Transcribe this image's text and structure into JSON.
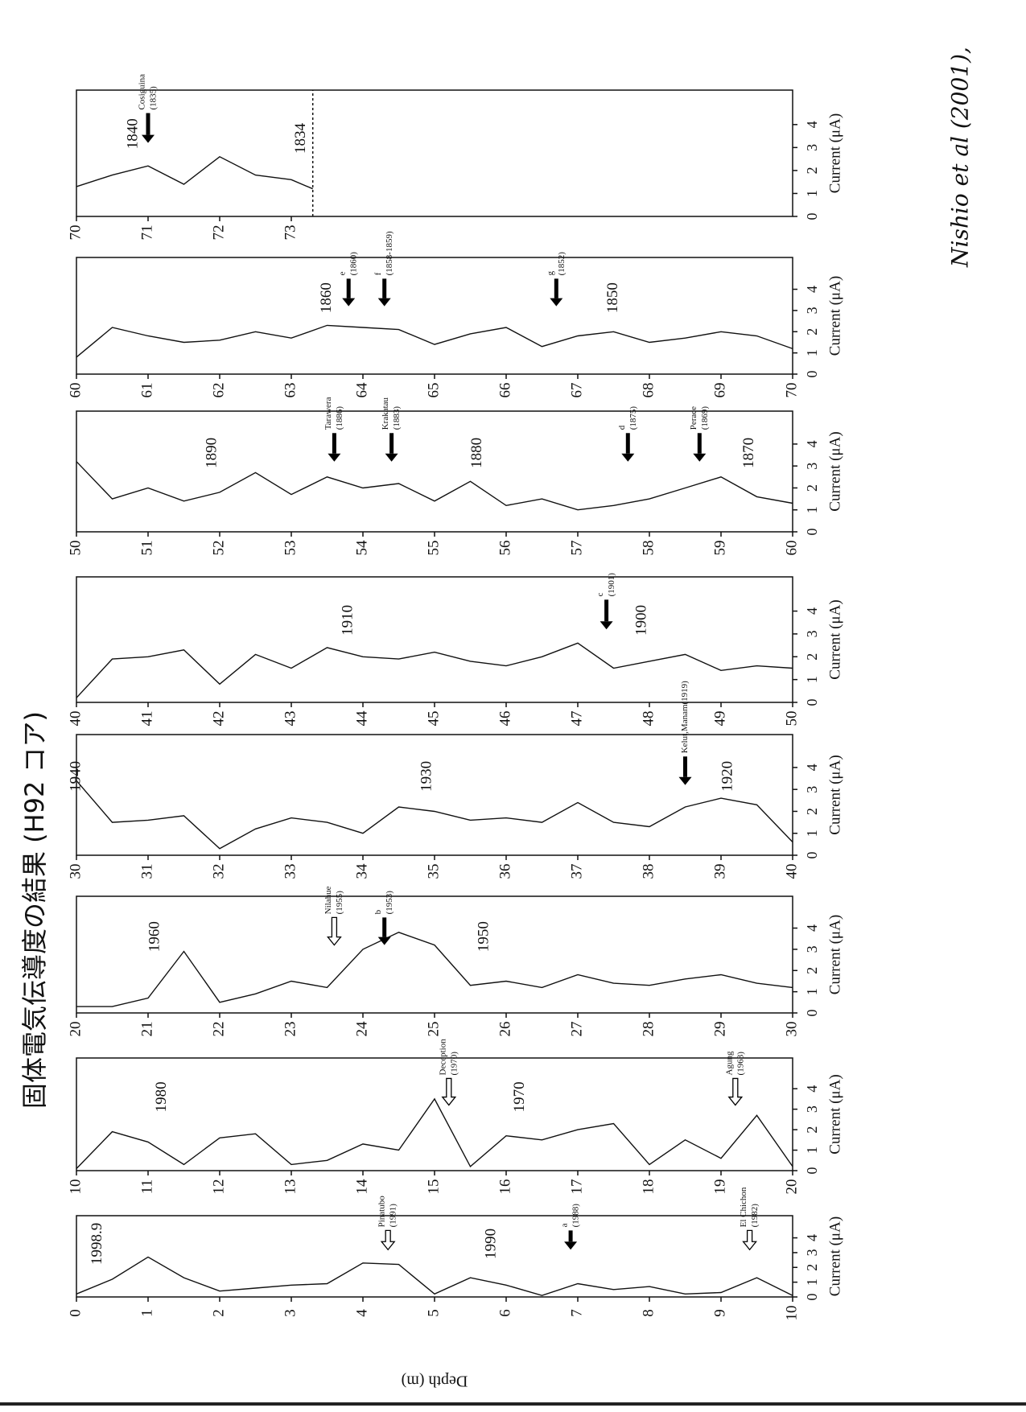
{
  "header": {
    "title": "固体電気伝導度の結果 (H92 コア)",
    "note": "Nishio et al (2001),"
  },
  "chart_data": [
    {
      "type": "line",
      "color": "#111111",
      "ylabel": "Depth (m)",
      "xlabel": "Current (μA)",
      "xlim": [
        0,
        5.5
      ],
      "xticks": [
        0,
        1,
        2,
        3,
        4
      ],
      "ylim": [
        0,
        10
      ],
      "yticks": [
        0,
        1,
        2,
        3,
        4,
        5,
        6,
        7,
        8,
        9,
        10
      ],
      "depth": [
        0,
        0.5,
        1,
        1.5,
        2,
        2.5,
        3,
        3.5,
        4,
        4.5,
        5,
        5.5,
        6,
        6.5,
        7,
        7.5,
        8,
        8.5,
        9,
        9.5,
        10
      ],
      "values": [
        0.2,
        1.2,
        2.7,
        1.3,
        0.4,
        0.6,
        0.8,
        0.9,
        2.3,
        2.2,
        0.2,
        1.3,
        0.8,
        0.1,
        0.9,
        0.5,
        0.7,
        0.2,
        0.3,
        1.3,
        0.1
      ],
      "year_labels": [
        {
          "depth": 0.3,
          "label": "1998.9"
        },
        {
          "depth": 5.8,
          "label": "1990"
        }
      ],
      "events": [
        {
          "depth": 4.35,
          "name": "Pinatubo",
          "year": "(1991)",
          "arrow": "open"
        },
        {
          "depth": 6.9,
          "name": "a",
          "year": "(1988)",
          "arrow": "solid"
        },
        {
          "depth": 9.4,
          "name": "El Chichon",
          "year": "(1982)",
          "arrow": "open"
        }
      ]
    },
    {
      "type": "line",
      "color": "#111111",
      "xlabel": "Current (μA)",
      "xlim": [
        0,
        5.5
      ],
      "xticks": [
        0,
        1,
        2,
        3,
        4
      ],
      "ylim": [
        10,
        20
      ],
      "yticks": [
        10,
        11,
        12,
        13,
        14,
        15,
        16,
        17,
        18,
        19,
        20
      ],
      "depth": [
        10,
        10.5,
        11,
        11.5,
        12,
        12.5,
        13,
        13.5,
        14,
        14.5,
        15,
        15.5,
        16,
        16.5,
        17,
        17.5,
        18,
        18.5,
        19,
        19.5,
        20
      ],
      "values": [
        0.1,
        1.9,
        1.4,
        0.3,
        1.6,
        1.8,
        0.3,
        0.5,
        1.3,
        1.0,
        3.5,
        0.2,
        1.7,
        1.5,
        2.0,
        2.3,
        0.3,
        1.5,
        0.6,
        2.7,
        0.2
      ],
      "year_labels": [
        {
          "depth": 11.2,
          "label": "1980"
        },
        {
          "depth": 16.2,
          "label": "1970"
        }
      ],
      "events": [
        {
          "depth": 15.2,
          "name": "Deception",
          "year": "(1970)",
          "arrow": "open"
        },
        {
          "depth": 19.2,
          "name": "Agung",
          "year": "(1963)",
          "arrow": "open"
        }
      ]
    },
    {
      "type": "line",
      "color": "#111111",
      "xlabel": "Current (μA)",
      "xlim": [
        0,
        5.5
      ],
      "xticks": [
        0,
        1,
        2,
        3,
        4
      ],
      "ylim": [
        20,
        30
      ],
      "yticks": [
        20,
        21,
        22,
        23,
        24,
        25,
        26,
        27,
        28,
        29,
        30
      ],
      "depth": [
        20,
        20.5,
        21,
        21.5,
        22,
        22.5,
        23,
        23.5,
        24,
        24.5,
        25,
        25.5,
        26,
        26.5,
        27,
        27.5,
        28,
        28.5,
        29,
        29.5,
        30
      ],
      "values": [
        0.3,
        0.3,
        0.7,
        2.9,
        0.5,
        0.9,
        1.5,
        1.2,
        3.0,
        3.8,
        3.2,
        1.3,
        1.5,
        1.2,
        1.8,
        1.4,
        1.3,
        1.6,
        1.8,
        1.4,
        1.2
      ],
      "year_labels": [
        {
          "depth": 21.1,
          "label": "1960"
        },
        {
          "depth": 25.7,
          "label": "1950"
        }
      ],
      "events": [
        {
          "depth": 23.6,
          "name": "Nilahue",
          "year": "(1955)",
          "arrow": "open"
        },
        {
          "depth": 24.3,
          "name": "b",
          "year": "(1953)",
          "arrow": "solid"
        }
      ]
    },
    {
      "type": "line",
      "color": "#111111",
      "xlabel": "Current (μA)",
      "xlim": [
        0,
        5.5
      ],
      "xticks": [
        0,
        1,
        2,
        3,
        4
      ],
      "ylim": [
        30,
        40
      ],
      "yticks": [
        30,
        31,
        32,
        33,
        34,
        35,
        36,
        37,
        38,
        39,
        40
      ],
      "depth": [
        30,
        30.5,
        31,
        31.5,
        32,
        32.5,
        33,
        33.5,
        34,
        34.5,
        35,
        35.5,
        36,
        36.5,
        37,
        37.5,
        38,
        38.5,
        39,
        39.5,
        40
      ],
      "values": [
        3.4,
        1.5,
        1.6,
        1.8,
        0.3,
        1.2,
        1.7,
        1.5,
        1.0,
        2.2,
        2.0,
        1.6,
        1.7,
        1.5,
        2.4,
        1.5,
        1.3,
        2.2,
        2.6,
        2.3,
        0.6
      ],
      "year_labels": [
        {
          "depth": 30.0,
          "label": "1940"
        },
        {
          "depth": 34.9,
          "label": "1930"
        },
        {
          "depth": 39.1,
          "label": "1920"
        }
      ],
      "events": [
        {
          "depth": 38.5,
          "name": "Kelut,Manam(1919)",
          "arrow": "solid"
        }
      ]
    },
    {
      "type": "line",
      "color": "#111111",
      "xlabel": "Current (μA)",
      "xlim": [
        0,
        5.5
      ],
      "xticks": [
        0,
        1,
        2,
        3,
        4
      ],
      "ylim": [
        40,
        50
      ],
      "yticks": [
        40,
        41,
        42,
        43,
        44,
        45,
        46,
        47,
        48,
        49,
        50
      ],
      "depth": [
        40,
        40.5,
        41,
        41.5,
        42,
        42.5,
        43,
        43.5,
        44,
        44.5,
        45,
        45.5,
        46,
        46.5,
        47,
        47.5,
        48,
        48.5,
        49,
        49.5,
        50
      ],
      "values": [
        0.2,
        1.9,
        2.0,
        2.3,
        0.8,
        2.1,
        1.5,
        2.4,
        2.0,
        1.9,
        2.2,
        1.8,
        1.6,
        2.0,
        2.6,
        1.5,
        1.8,
        2.1,
        1.4,
        1.6,
        1.5
      ],
      "year_labels": [
        {
          "depth": 43.8,
          "label": "1910"
        },
        {
          "depth": 47.9,
          "label": "1900"
        }
      ],
      "events": [
        {
          "depth": 47.4,
          "name": "c",
          "year": "(1901)",
          "arrow": "solid"
        }
      ]
    },
    {
      "type": "line",
      "color": "#111111",
      "xlabel": "Current (μA)",
      "xlim": [
        0,
        5.5
      ],
      "xticks": [
        0,
        1,
        2,
        3,
        4
      ],
      "ylim": [
        50,
        60
      ],
      "yticks": [
        50,
        51,
        52,
        53,
        54,
        55,
        56,
        57,
        58,
        59,
        60
      ],
      "depth": [
        50,
        50.5,
        51,
        51.5,
        52,
        52.5,
        53,
        53.5,
        54,
        54.5,
        55,
        55.5,
        56,
        56.5,
        57,
        57.5,
        58,
        58.5,
        59,
        59.5,
        60
      ],
      "values": [
        3.2,
        1.5,
        2.0,
        1.4,
        1.8,
        2.7,
        1.7,
        2.5,
        2.0,
        2.2,
        1.4,
        2.3,
        1.2,
        1.5,
        1.0,
        1.2,
        1.5,
        2.0,
        2.5,
        1.6,
        1.3
      ],
      "year_labels": [
        {
          "depth": 51.9,
          "label": "1890"
        },
        {
          "depth": 55.6,
          "label": "1880"
        },
        {
          "depth": 59.4,
          "label": "1870"
        }
      ],
      "events": [
        {
          "depth": 53.6,
          "name": "Tarawera",
          "year": "(1886)",
          "arrow": "solid"
        },
        {
          "depth": 54.4,
          "name": "Krakatau",
          "year": "(1883)",
          "arrow": "solid"
        },
        {
          "depth": 57.7,
          "name": "d",
          "year": "(1875)",
          "arrow": "solid"
        },
        {
          "depth": 58.7,
          "name": "Perace",
          "year": "(1869)",
          "arrow": "solid"
        }
      ]
    },
    {
      "type": "line",
      "color": "#111111",
      "xlabel": "Current (μA)",
      "xlim": [
        0,
        5.5
      ],
      "xticks": [
        0,
        1,
        2,
        3,
        4
      ],
      "ylim": [
        60,
        70
      ],
      "yticks": [
        60,
        61,
        62,
        63,
        64,
        65,
        66,
        67,
        68,
        69,
        70
      ],
      "depth": [
        60,
        60.5,
        61,
        61.5,
        62,
        62.5,
        63,
        63.5,
        64,
        64.5,
        65,
        65.5,
        66,
        66.5,
        67,
        67.5,
        68,
        68.5,
        69,
        69.5,
        70
      ],
      "values": [
        0.8,
        2.2,
        1.8,
        1.5,
        1.6,
        2.0,
        1.7,
        2.3,
        2.2,
        2.1,
        1.4,
        1.9,
        2.2,
        1.3,
        1.8,
        2.0,
        1.5,
        1.7,
        2.0,
        1.8,
        1.2
      ],
      "year_labels": [
        {
          "depth": 63.5,
          "label": "1860"
        },
        {
          "depth": 67.5,
          "label": "1850"
        }
      ],
      "events": [
        {
          "depth": 63.8,
          "name": "e",
          "year": "(1860)",
          "arrow": "solid"
        },
        {
          "depth": 64.3,
          "name": "f",
          "year": "(1858-1859)",
          "arrow": "solid"
        },
        {
          "depth": 66.7,
          "name": "g",
          "year": "(1852)",
          "arrow": "solid"
        }
      ]
    },
    {
      "type": "line",
      "color": "#111111",
      "xlabel": "Current (μA)",
      "xlim": [
        0,
        5.5
      ],
      "xticks": [
        0,
        1,
        2,
        3,
        4
      ],
      "ylim": [
        70,
        80
      ],
      "yticks": [
        70,
        71,
        72,
        73
      ],
      "depth": [
        70,
        70.5,
        71,
        71.5,
        72,
        72.5,
        73,
        73.3
      ],
      "values": [
        1.3,
        1.8,
        2.2,
        1.4,
        2.6,
        1.8,
        1.6,
        1.2
      ],
      "year_labels": [
        {
          "depth": 70.8,
          "label": "1840"
        },
        {
          "depth": 73.3,
          "label": "1834",
          "line": "dotted"
        }
      ],
      "events": [
        {
          "depth": 71.0,
          "name": "Cosiguina",
          "year": "(1835)",
          "arrow": "solid"
        }
      ]
    }
  ]
}
